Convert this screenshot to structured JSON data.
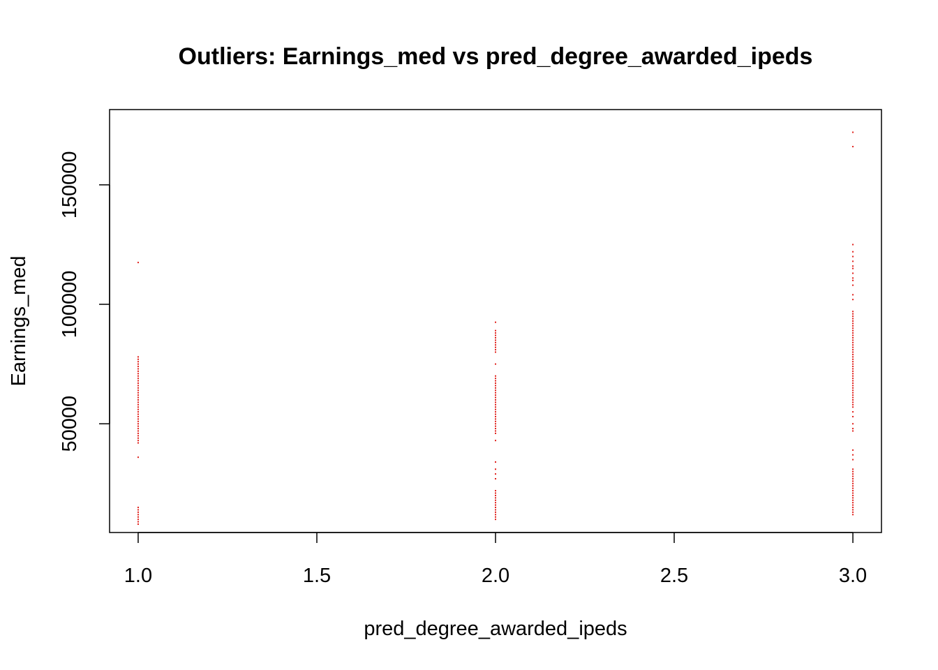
{
  "chart_data": {
    "type": "scatter",
    "title": "Outliers: Earnings_med vs pred_degree_awarded_ipeds",
    "xlabel": "pred_degree_awarded_ipeds",
    "ylabel": "Earnings_med",
    "xlim": [
      0.92,
      3.08
    ],
    "ylim": [
      4500,
      181500
    ],
    "x_ticks": [
      1.0,
      1.5,
      2.0,
      2.5,
      3.0
    ],
    "x_tick_labels": [
      "1.0",
      "1.5",
      "2.0",
      "2.5",
      "3.0"
    ],
    "y_ticks": [
      50000,
      100000,
      150000
    ],
    "y_tick_labels": [
      "50000",
      "100000",
      "150000"
    ],
    "grid": false,
    "legend": "none",
    "point_color": "#e0201b",
    "series": [
      {
        "points": [
          [
            1,
            117500
          ],
          [
            1,
            78000
          ],
          [
            1,
            77000
          ],
          [
            1,
            76000
          ],
          [
            1,
            75000
          ],
          [
            1,
            74000
          ],
          [
            1,
            73000
          ],
          [
            1,
            72000
          ],
          [
            1,
            71000
          ],
          [
            1,
            70000
          ],
          [
            1,
            69000
          ],
          [
            1,
            68000
          ],
          [
            1,
            67000
          ],
          [
            1,
            66000
          ],
          [
            1,
            65000
          ],
          [
            1,
            64000
          ],
          [
            1,
            63000
          ],
          [
            1,
            62000
          ],
          [
            1,
            61000
          ],
          [
            1,
            60000
          ],
          [
            1,
            59000
          ],
          [
            1,
            58000
          ],
          [
            1,
            57000
          ],
          [
            1,
            56000
          ],
          [
            1,
            55000
          ],
          [
            1,
            54000
          ],
          [
            1,
            53000
          ],
          [
            1,
            52000
          ],
          [
            1,
            51000
          ],
          [
            1,
            50000
          ],
          [
            1,
            49000
          ],
          [
            1,
            48000
          ],
          [
            1,
            47000
          ],
          [
            1,
            46000
          ],
          [
            1,
            45000
          ],
          [
            1,
            44000
          ],
          [
            1,
            43000
          ],
          [
            1,
            42000
          ],
          [
            1,
            36000
          ],
          [
            1,
            15000
          ],
          [
            1,
            14000
          ],
          [
            1,
            13000
          ],
          [
            1,
            12000
          ],
          [
            1,
            11000
          ],
          [
            1,
            10000
          ],
          [
            1,
            9000
          ],
          [
            1,
            8000
          ],
          [
            2,
            92500
          ],
          [
            2,
            89000
          ],
          [
            2,
            88000
          ],
          [
            2,
            87000
          ],
          [
            2,
            86000
          ],
          [
            2,
            85000
          ],
          [
            2,
            84000
          ],
          [
            2,
            83000
          ],
          [
            2,
            82000
          ],
          [
            2,
            81000
          ],
          [
            2,
            80000
          ],
          [
            2,
            75000
          ],
          [
            2,
            70000
          ],
          [
            2,
            69000
          ],
          [
            2,
            68000
          ],
          [
            2,
            67000
          ],
          [
            2,
            66000
          ],
          [
            2,
            65000
          ],
          [
            2,
            64000
          ],
          [
            2,
            63000
          ],
          [
            2,
            62000
          ],
          [
            2,
            61000
          ],
          [
            2,
            60000
          ],
          [
            2,
            59000
          ],
          [
            2,
            58000
          ],
          [
            2,
            57000
          ],
          [
            2,
            56000
          ],
          [
            2,
            55000
          ],
          [
            2,
            54000
          ],
          [
            2,
            53000
          ],
          [
            2,
            52000
          ],
          [
            2,
            51000
          ],
          [
            2,
            50000
          ],
          [
            2,
            49000
          ],
          [
            2,
            48000
          ],
          [
            2,
            47000
          ],
          [
            2,
            46000
          ],
          [
            2,
            43000
          ],
          [
            2,
            34000
          ],
          [
            2,
            31000
          ],
          [
            2,
            29000
          ],
          [
            2,
            27000
          ],
          [
            2,
            22000
          ],
          [
            2,
            21000
          ],
          [
            2,
            20000
          ],
          [
            2,
            19000
          ],
          [
            2,
            18000
          ],
          [
            2,
            17000
          ],
          [
            2,
            16000
          ],
          [
            2,
            15000
          ],
          [
            2,
            14000
          ],
          [
            2,
            13000
          ],
          [
            2,
            12000
          ],
          [
            2,
            11000
          ],
          [
            2,
            10000
          ],
          [
            3,
            172000
          ],
          [
            3,
            166000
          ],
          [
            3,
            125000
          ],
          [
            3,
            122000
          ],
          [
            3,
            120000
          ],
          [
            3,
            118000
          ],
          [
            3,
            116000
          ],
          [
            3,
            115000
          ],
          [
            3,
            113000
          ],
          [
            3,
            111000
          ],
          [
            3,
            110000
          ],
          [
            3,
            108000
          ],
          [
            3,
            104000
          ],
          [
            3,
            102000
          ],
          [
            3,
            97000
          ],
          [
            3,
            96000
          ],
          [
            3,
            95000
          ],
          [
            3,
            94000
          ],
          [
            3,
            93000
          ],
          [
            3,
            92000
          ],
          [
            3,
            91000
          ],
          [
            3,
            90000
          ],
          [
            3,
            89000
          ],
          [
            3,
            88000
          ],
          [
            3,
            87000
          ],
          [
            3,
            86000
          ],
          [
            3,
            85000
          ],
          [
            3,
            84000
          ],
          [
            3,
            83000
          ],
          [
            3,
            82000
          ],
          [
            3,
            81000
          ],
          [
            3,
            80000
          ],
          [
            3,
            79000
          ],
          [
            3,
            78000
          ],
          [
            3,
            77000
          ],
          [
            3,
            76000
          ],
          [
            3,
            75000
          ],
          [
            3,
            74000
          ],
          [
            3,
            73000
          ],
          [
            3,
            72000
          ],
          [
            3,
            71000
          ],
          [
            3,
            70000
          ],
          [
            3,
            69000
          ],
          [
            3,
            68000
          ],
          [
            3,
            67000
          ],
          [
            3,
            66000
          ],
          [
            3,
            65000
          ],
          [
            3,
            64000
          ],
          [
            3,
            63000
          ],
          [
            3,
            62000
          ],
          [
            3,
            61000
          ],
          [
            3,
            60000
          ],
          [
            3,
            59000
          ],
          [
            3,
            58000
          ],
          [
            3,
            57000
          ],
          [
            3,
            55000
          ],
          [
            3,
            53000
          ],
          [
            3,
            50000
          ],
          [
            3,
            48000
          ],
          [
            3,
            47000
          ],
          [
            3,
            39000
          ],
          [
            3,
            37000
          ],
          [
            3,
            35000
          ],
          [
            3,
            31000
          ],
          [
            3,
            30000
          ],
          [
            3,
            29000
          ],
          [
            3,
            28000
          ],
          [
            3,
            27000
          ],
          [
            3,
            26000
          ],
          [
            3,
            25000
          ],
          [
            3,
            24000
          ],
          [
            3,
            23000
          ],
          [
            3,
            22000
          ],
          [
            3,
            21000
          ],
          [
            3,
            20000
          ],
          [
            3,
            19000
          ],
          [
            3,
            18000
          ],
          [
            3,
            17000
          ],
          [
            3,
            16000
          ],
          [
            3,
            15000
          ],
          [
            3,
            14000
          ],
          [
            3,
            13000
          ],
          [
            3,
            12000
          ]
        ]
      }
    ]
  }
}
